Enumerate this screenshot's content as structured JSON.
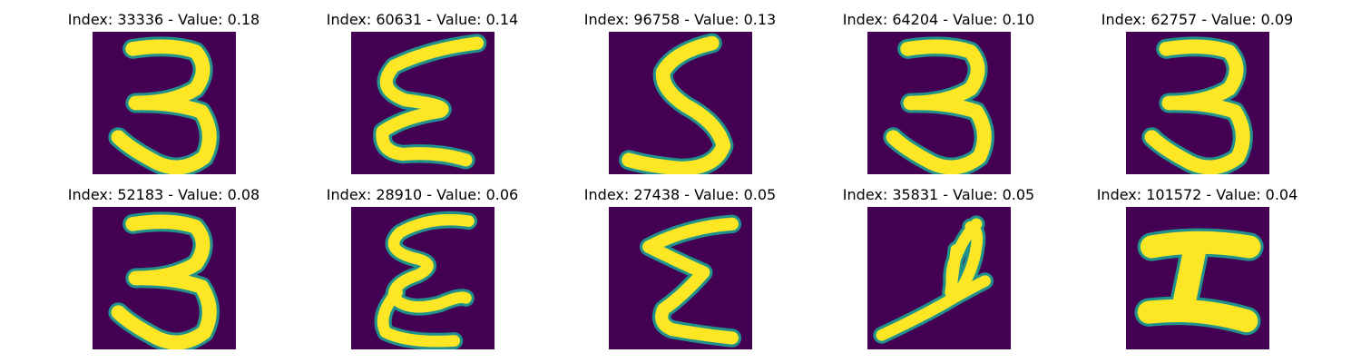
{
  "figure": {
    "colormap": "viridis",
    "background": "#440154",
    "stroke_color": "#fde725",
    "panels": [
      {
        "title": "Index: 33336 - Value: 0.18",
        "digit_shape": "3"
      },
      {
        "title": "Index: 60631 - Value: 0.14",
        "digit_shape": "sigma-slanted"
      },
      {
        "title": "Index: 96758 - Value: 0.13",
        "digit_shape": "5-curved"
      },
      {
        "title": "Index: 64204 - Value: 0.10",
        "digit_shape": "3"
      },
      {
        "title": "Index: 62757 - Value: 0.09",
        "digit_shape": "3"
      },
      {
        "title": "Index: 52183 - Value: 0.08",
        "digit_shape": "3"
      },
      {
        "title": "Index: 28910 - Value: 0.06",
        "digit_shape": "E-curly"
      },
      {
        "title": "Index: 27438 - Value: 0.05",
        "digit_shape": "sigma"
      },
      {
        "title": "Index: 35831 - Value: 0.05",
        "digit_shape": "4-looped"
      },
      {
        "title": "Index: 101572 - Value: 0.04",
        "digit_shape": "H-block"
      }
    ]
  }
}
